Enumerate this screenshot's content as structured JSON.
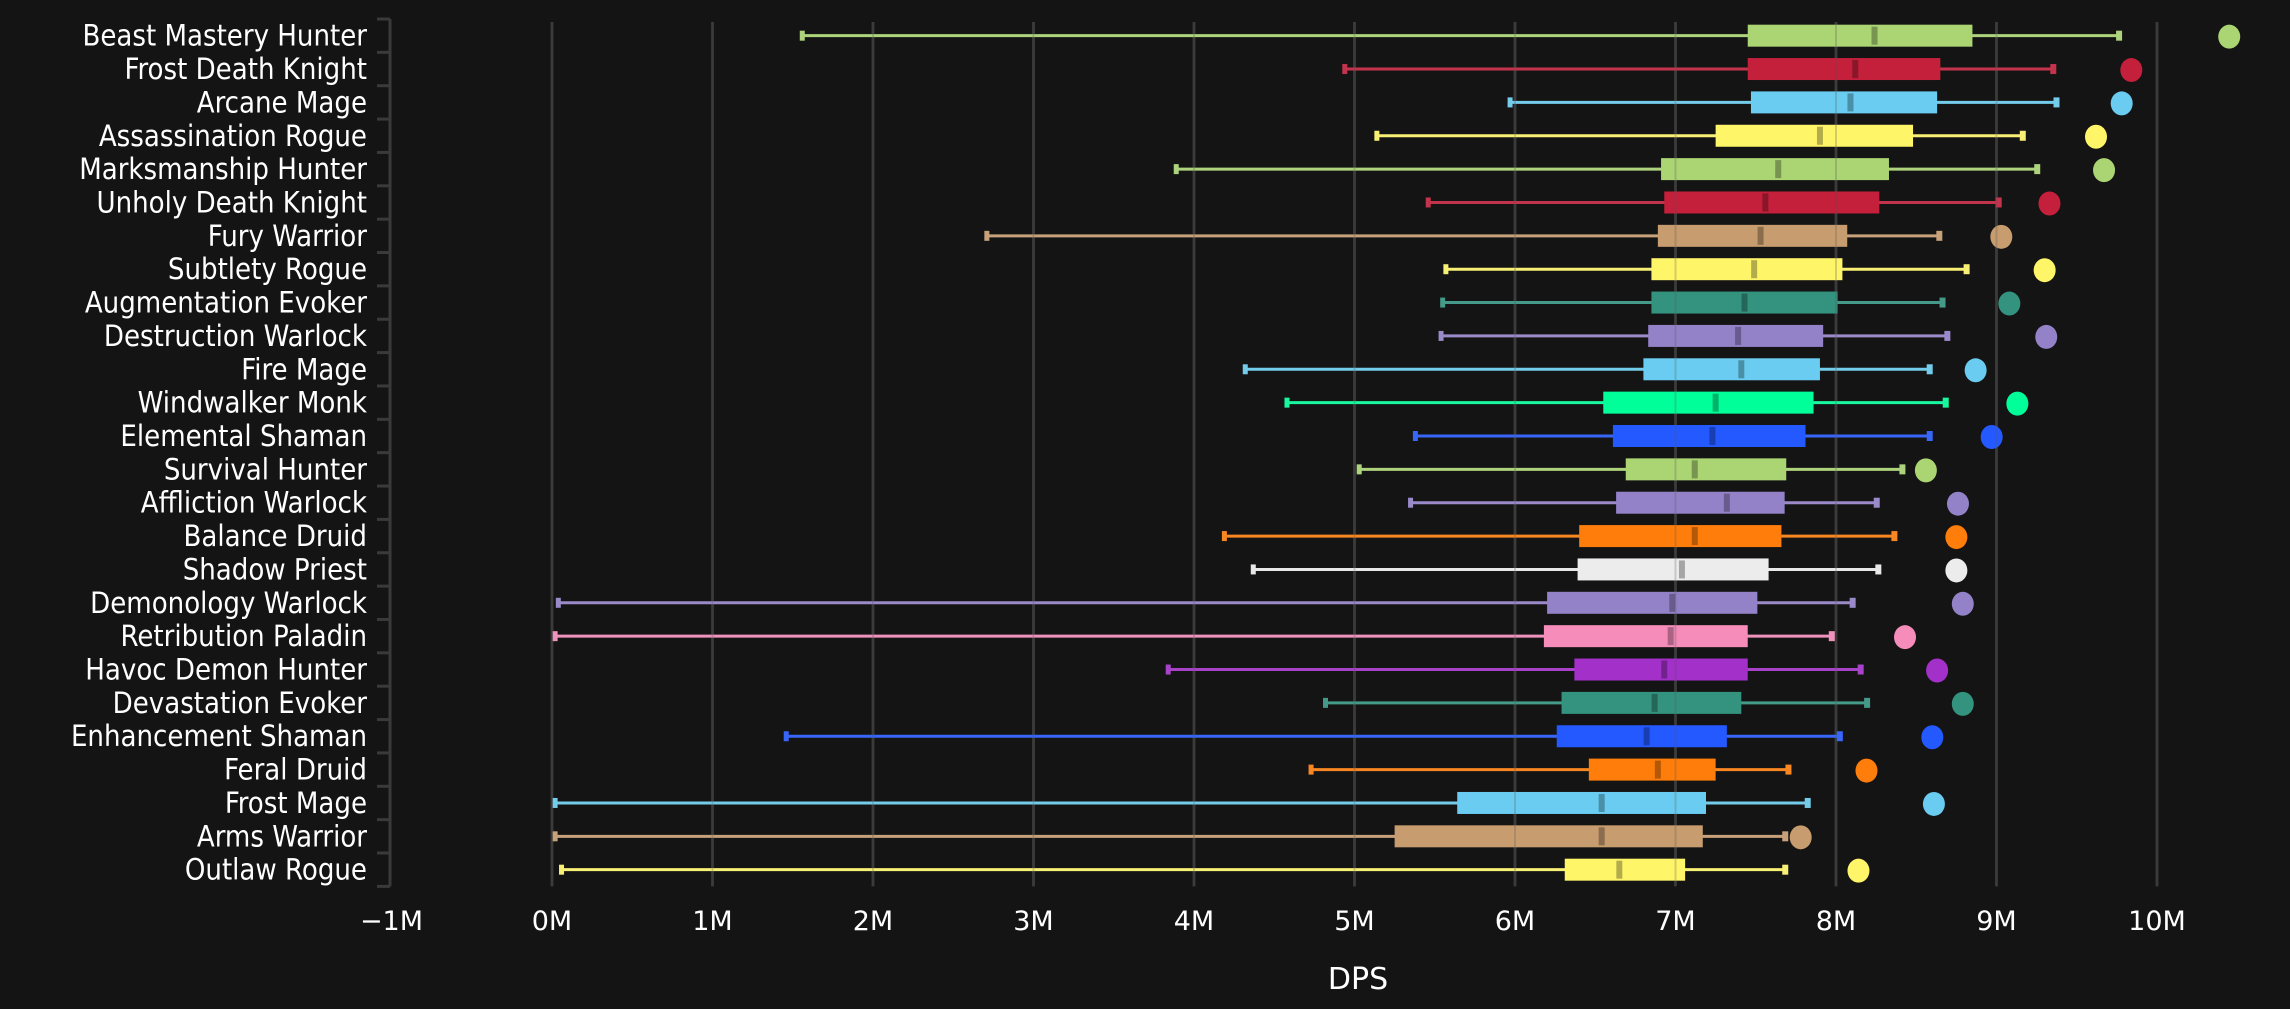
{
  "chart_data": {
    "type": "boxplot",
    "title": "",
    "xlabel": "DPS",
    "ylabel": "",
    "xlim": [
      -1,
      10.5
    ],
    "x_unit": "M",
    "x_ticks": [
      "−1M",
      "0M",
      "1M",
      "2M",
      "3M",
      "4M",
      "5M",
      "6M",
      "7M",
      "8M",
      "9M",
      "10M"
    ],
    "x_tick_values": [
      -1,
      0,
      1,
      2,
      3,
      4,
      5,
      6,
      7,
      8,
      9,
      10
    ],
    "grid": "vertical",
    "legend": "none",
    "series_fields": [
      "low",
      "q1",
      "median",
      "q3",
      "high",
      "max"
    ],
    "categories": [
      {
        "name": "Beast Mastery Hunter",
        "color": "#abd473",
        "low": 1.55,
        "q1": 7.45,
        "median": 8.24,
        "q3": 8.85,
        "high": 9.77,
        "max": 10.45
      },
      {
        "name": "Frost Death Knight",
        "color": "#c41f3b",
        "low": 4.93,
        "q1": 7.45,
        "median": 8.12,
        "q3": 8.65,
        "high": 9.36,
        "max": 9.84
      },
      {
        "name": "Arcane Mage",
        "color": "#69ccf0",
        "low": 5.96,
        "q1": 7.47,
        "median": 8.09,
        "q3": 8.63,
        "high": 9.38,
        "max": 9.78
      },
      {
        "name": "Assassination Rogue",
        "color": "#fff569",
        "low": 5.13,
        "q1": 7.25,
        "median": 7.9,
        "q3": 8.48,
        "high": 9.17,
        "max": 9.62
      },
      {
        "name": "Marksmanship Hunter",
        "color": "#abd473",
        "low": 3.88,
        "q1": 6.91,
        "median": 7.64,
        "q3": 8.33,
        "high": 9.26,
        "max": 9.67
      },
      {
        "name": "Unholy Death Knight",
        "color": "#c41f3b",
        "low": 5.45,
        "q1": 6.93,
        "median": 7.56,
        "q3": 8.27,
        "high": 9.02,
        "max": 9.33
      },
      {
        "name": "Fury Warrior",
        "color": "#c79c6e",
        "low": 2.7,
        "q1": 6.89,
        "median": 7.53,
        "q3": 8.07,
        "high": 8.65,
        "max": 9.03
      },
      {
        "name": "Subtlety Rogue",
        "color": "#fff569",
        "low": 5.56,
        "q1": 6.85,
        "median": 7.49,
        "q3": 8.04,
        "high": 8.82,
        "max": 9.3
      },
      {
        "name": "Augmentation Evoker",
        "color": "#33937f",
        "low": 5.54,
        "q1": 6.85,
        "median": 7.43,
        "q3": 8.01,
        "high": 8.67,
        "max": 9.08
      },
      {
        "name": "Destruction Warlock",
        "color": "#9482c9",
        "low": 5.53,
        "q1": 6.83,
        "median": 7.39,
        "q3": 7.92,
        "high": 8.7,
        "max": 9.31
      },
      {
        "name": "Fire Mage",
        "color": "#69ccf0",
        "low": 4.31,
        "q1": 6.8,
        "median": 7.41,
        "q3": 7.9,
        "high": 8.59,
        "max": 8.87
      },
      {
        "name": "Windwalker Monk",
        "color": "#00ff98",
        "low": 4.57,
        "q1": 6.55,
        "median": 7.25,
        "q3": 7.86,
        "high": 8.69,
        "max": 9.13
      },
      {
        "name": "Elemental Shaman",
        "color": "#2459ff",
        "low": 5.37,
        "q1": 6.61,
        "median": 7.23,
        "q3": 7.81,
        "high": 8.59,
        "max": 8.97
      },
      {
        "name": "Survival Hunter",
        "color": "#abd473",
        "low": 5.02,
        "q1": 6.69,
        "median": 7.12,
        "q3": 7.69,
        "high": 8.42,
        "max": 8.56
      },
      {
        "name": "Affliction Warlock",
        "color": "#9482c9",
        "low": 5.34,
        "q1": 6.63,
        "median": 7.32,
        "q3": 7.68,
        "high": 8.26,
        "max": 8.76
      },
      {
        "name": "Balance Druid",
        "color": "#ff7d0a",
        "low": 4.18,
        "q1": 6.4,
        "median": 7.12,
        "q3": 7.66,
        "high": 8.37,
        "max": 8.75
      },
      {
        "name": "Shadow Priest",
        "color": "#ececec",
        "low": 4.36,
        "q1": 6.39,
        "median": 7.04,
        "q3": 7.58,
        "high": 8.27,
        "max": 8.75
      },
      {
        "name": "Demonology Warlock",
        "color": "#9482c9",
        "low": 0.03,
        "q1": 6.2,
        "median": 6.98,
        "q3": 7.51,
        "high": 8.11,
        "max": 8.79
      },
      {
        "name": "Retribution Paladin",
        "color": "#f58cba",
        "low": 0.01,
        "q1": 6.18,
        "median": 6.97,
        "q3": 7.45,
        "high": 7.98,
        "max": 8.43
      },
      {
        "name": "Havoc Demon Hunter",
        "color": "#a330c9",
        "low": 3.83,
        "q1": 6.37,
        "median": 6.93,
        "q3": 7.45,
        "high": 8.16,
        "max": 8.63
      },
      {
        "name": "Devastation Evoker",
        "color": "#33937f",
        "low": 4.81,
        "q1": 6.29,
        "median": 6.87,
        "q3": 7.41,
        "high": 8.2,
        "max": 8.79
      },
      {
        "name": "Enhancement Shaman",
        "color": "#2459ff",
        "low": 1.45,
        "q1": 6.26,
        "median": 6.82,
        "q3": 7.32,
        "high": 8.03,
        "max": 8.6
      },
      {
        "name": "Feral Druid",
        "color": "#ff7d0a",
        "low": 4.72,
        "q1": 6.46,
        "median": 6.89,
        "q3": 7.25,
        "high": 7.71,
        "max": 8.19
      },
      {
        "name": "Frost Mage",
        "color": "#69ccf0",
        "low": 0.01,
        "q1": 5.64,
        "median": 6.54,
        "q3": 7.19,
        "high": 7.83,
        "max": 8.61
      },
      {
        "name": "Arms Warrior",
        "color": "#c79c6e",
        "low": 0.01,
        "q1": 5.25,
        "median": 6.54,
        "q3": 7.17,
        "high": 7.69,
        "max": 7.78
      },
      {
        "name": "Outlaw Rogue",
        "color": "#fff569",
        "low": 0.05,
        "q1": 6.31,
        "median": 6.65,
        "q3": 7.06,
        "high": 7.69,
        "max": 8.14
      }
    ]
  },
  "colors": {
    "background": "#141414",
    "grid": "#333333",
    "axis": "#3a3a3a",
    "text": "#ffffff"
  }
}
